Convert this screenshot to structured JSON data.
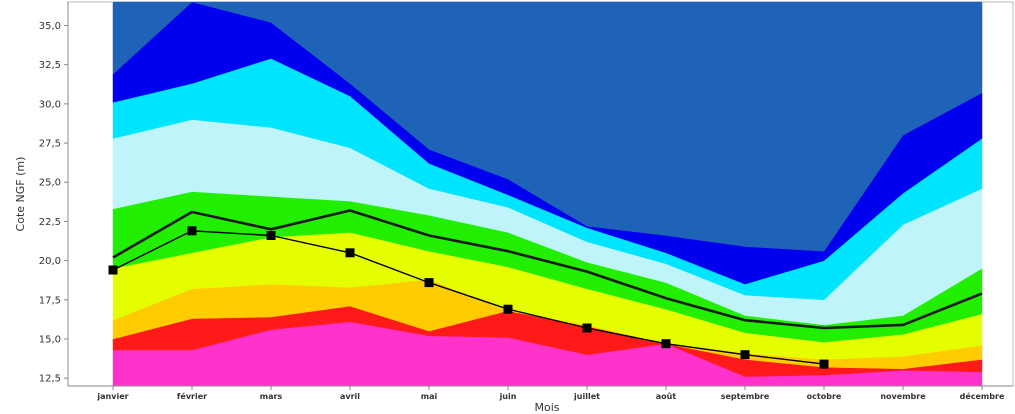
{
  "chart_data": {
    "type": "area",
    "xlabel": "Mois",
    "ylabel": "Cote NGF  (m)",
    "categories": [
      "janvier",
      "février",
      "mars",
      "avril",
      "mai",
      "juin",
      "juillet",
      "août",
      "septembre",
      "octobre",
      "novembre",
      "décembre"
    ],
    "ylim": [
      12.0,
      36.5
    ],
    "yticks": [
      12.5,
      15.0,
      17.5,
      20.0,
      22.5,
      25.0,
      27.5,
      30.0,
      32.5,
      35.0
    ],
    "ytick_labels": [
      "12,5",
      "15,0",
      "17,5",
      "20,0",
      "22,5",
      "25,0",
      "27,5",
      "30,0",
      "32,5",
      "35,0"
    ],
    "grid": false,
    "bands": [
      {
        "color": "#ff33cc",
        "lower": [
          12.0,
          12.0,
          12.0,
          12.0,
          12.0,
          12.0,
          12.0,
          12.0,
          12.0,
          12.0,
          12.0,
          12.0
        ],
        "upper": [
          14.3,
          14.3,
          15.6,
          16.1,
          15.2,
          15.1,
          14.0,
          14.7,
          12.6,
          12.7,
          13.0,
          12.9
        ]
      },
      {
        "color": "#ff1a1a",
        "lower": [
          14.3,
          14.3,
          15.6,
          16.1,
          15.2,
          15.1,
          14.0,
          14.7,
          12.6,
          12.7,
          13.0,
          12.9
        ],
        "upper": [
          15.0,
          16.3,
          16.4,
          17.1,
          15.5,
          16.8,
          15.8,
          14.7,
          13.7,
          13.2,
          13.1,
          13.7
        ]
      },
      {
        "color": "#ffcc00",
        "lower": [
          15.0,
          16.3,
          16.4,
          17.1,
          15.5,
          16.8,
          15.8,
          14.7,
          13.7,
          13.2,
          13.1,
          13.7
        ],
        "upper": [
          16.2,
          18.2,
          18.5,
          18.3,
          18.8,
          16.8,
          15.9,
          14.7,
          14.1,
          13.7,
          13.9,
          14.6
        ]
      },
      {
        "color": "#e6ff00",
        "lower": [
          16.2,
          18.2,
          18.5,
          18.3,
          18.8,
          16.8,
          15.9,
          14.7,
          14.1,
          13.7,
          13.9,
          14.6
        ],
        "upper": [
          19.5,
          20.5,
          21.5,
          21.8,
          20.6,
          19.6,
          18.2,
          16.9,
          15.4,
          14.8,
          15.3,
          16.6
        ]
      },
      {
        "color": "#22ee00",
        "lower": [
          19.5,
          20.5,
          21.5,
          21.8,
          20.6,
          19.6,
          18.2,
          16.9,
          15.4,
          14.8,
          15.3,
          16.6
        ],
        "upper": [
          23.3,
          24.4,
          24.1,
          23.8,
          22.9,
          21.8,
          19.9,
          18.6,
          16.5,
          15.9,
          16.5,
          19.5
        ]
      },
      {
        "color": "#bff5fa",
        "lower": [
          23.3,
          24.4,
          24.1,
          23.8,
          22.9,
          21.8,
          19.9,
          18.6,
          16.5,
          15.9,
          16.5,
          19.5
        ],
        "upper": [
          27.8,
          29.0,
          28.5,
          27.2,
          24.6,
          23.4,
          21.2,
          19.8,
          17.8,
          17.5,
          22.3,
          24.6
        ]
      },
      {
        "color": "#00e5ff",
        "lower": [
          27.8,
          29.0,
          28.5,
          27.2,
          24.6,
          23.4,
          21.2,
          19.8,
          17.8,
          17.5,
          22.3,
          24.6
        ],
        "upper": [
          30.1,
          31.3,
          32.9,
          30.5,
          26.2,
          24.2,
          22.1,
          20.5,
          18.5,
          20.0,
          24.3,
          27.8
        ]
      },
      {
        "color": "#0000ee",
        "lower": [
          30.1,
          31.3,
          32.9,
          30.5,
          26.2,
          24.2,
          22.1,
          20.5,
          18.5,
          20.0,
          24.3,
          27.8
        ],
        "upper": [
          31.9,
          36.5,
          35.2,
          31.3,
          27.1,
          25.2,
          22.2,
          21.6,
          20.9,
          20.6,
          28.0,
          30.7
        ]
      },
      {
        "color": "#1f63b8",
        "lower": [
          31.9,
          36.5,
          35.2,
          31.3,
          27.1,
          25.2,
          22.2,
          21.6,
          20.9,
          20.6,
          28.0,
          30.7
        ],
        "upper": [
          36.5,
          36.5,
          36.5,
          36.5,
          36.5,
          36.5,
          36.5,
          36.5,
          36.5,
          36.5,
          36.5,
          36.5
        ]
      }
    ],
    "series": [
      {
        "values": [
          20.2,
          23.1,
          22.0,
          23.2,
          21.6,
          20.6,
          19.3,
          17.6,
          16.2,
          15.7,
          15.9,
          17.9
        ],
        "style": "thick-line",
        "color": "#1a1a1a"
      },
      {
        "values": [
          19.4,
          21.9,
          21.6,
          20.5,
          18.6,
          16.9,
          15.7,
          14.7,
          14.0,
          13.4,
          null,
          null
        ],
        "style": "line-square-markers",
        "color": "#000000"
      }
    ]
  }
}
